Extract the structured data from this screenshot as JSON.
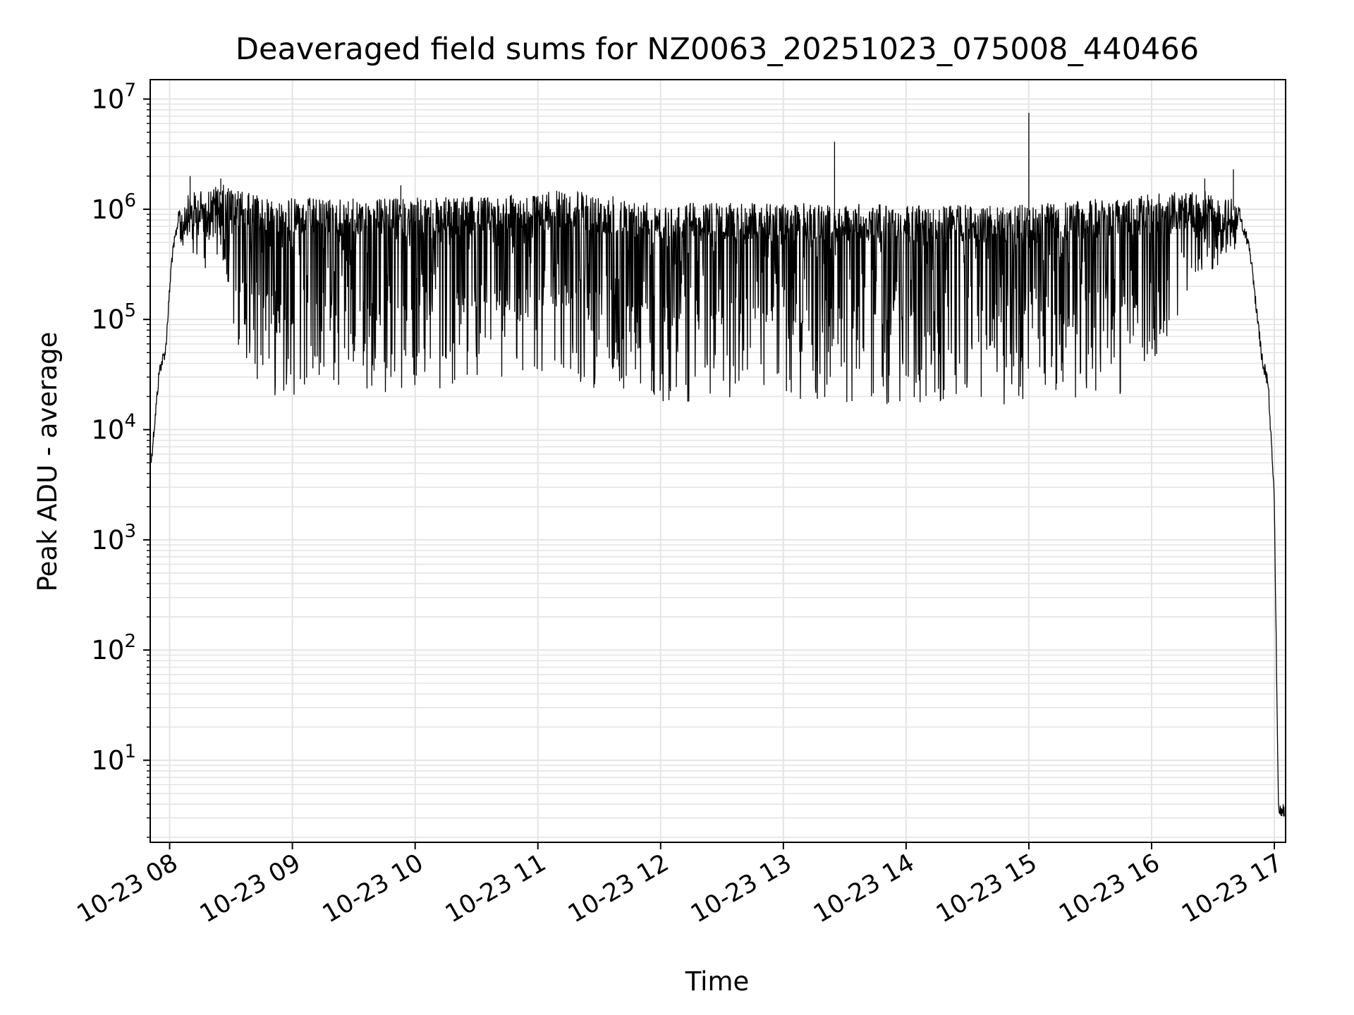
{
  "chart_data": {
    "type": "line",
    "title": "Deaveraged field sums for NZ0063_20251023_075008_440466",
    "xlabel": "Time",
    "ylabel": "Peak ADU - average",
    "y_scale": "log",
    "ylim": [
      1.8,
      15000000
    ],
    "xlim": [
      "2025-10-23 07:50:30",
      "2025-10-23 17:05:30"
    ],
    "grid": true,
    "x_tick_labels": [
      "10-23 08",
      "10-23 09",
      "10-23 10",
      "10-23 11",
      "10-23 12",
      "10-23 13",
      "10-23 14",
      "10-23 15",
      "10-23 16",
      "10-23 17"
    ],
    "x_tick_values": [
      "2025-10-23 08:00",
      "2025-10-23 09:00",
      "2025-10-23 10:00",
      "2025-10-23 11:00",
      "2025-10-23 12:00",
      "2025-10-23 13:00",
      "2025-10-23 14:00",
      "2025-10-23 15:00",
      "2025-10-23 16:00",
      "2025-10-23 17:00"
    ],
    "y_ticks": [
      {
        "value": 10,
        "base": "10",
        "exp": "1"
      },
      {
        "value": 100,
        "base": "10",
        "exp": "2"
      },
      {
        "value": 1000,
        "base": "10",
        "exp": "3"
      },
      {
        "value": 10000,
        "base": "10",
        "exp": "4"
      },
      {
        "value": 100000,
        "base": "10",
        "exp": "5"
      },
      {
        "value": 1000000,
        "base": "10",
        "exp": "6"
      },
      {
        "value": 10000000,
        "base": "10",
        "exp": "7"
      }
    ],
    "series": [
      {
        "color": "#000000",
        "envelope_upper": [
          {
            "t": "2025-10-23 07:51",
            "v": 6000
          },
          {
            "t": "2025-10-23 07:55",
            "v": 40000
          },
          {
            "t": "2025-10-23 07:58",
            "v": 60000
          },
          {
            "t": "2025-10-23 08:01",
            "v": 400000
          },
          {
            "t": "2025-10-23 08:05",
            "v": 1150000
          },
          {
            "t": "2025-10-23 08:10",
            "v": 1400000
          },
          {
            "t": "2025-10-23 08:25",
            "v": 1700000
          },
          {
            "t": "2025-10-23 08:45",
            "v": 1300000
          },
          {
            "t": "2025-10-23 09:30",
            "v": 1250000
          },
          {
            "t": "2025-10-23 10:30",
            "v": 1300000
          },
          {
            "t": "2025-10-23 11:15",
            "v": 1500000
          },
          {
            "t": "2025-10-23 12:00",
            "v": 1150000
          },
          {
            "t": "2025-10-23 13:00",
            "v": 1150000
          },
          {
            "t": "2025-10-23 14:00",
            "v": 1100000
          },
          {
            "t": "2025-10-23 15:00",
            "v": 1100000
          },
          {
            "t": "2025-10-23 15:45",
            "v": 1300000
          },
          {
            "t": "2025-10-23 16:25",
            "v": 1500000
          },
          {
            "t": "2025-10-23 16:42",
            "v": 1200000
          },
          {
            "t": "2025-10-23 16:48",
            "v": 500000
          },
          {
            "t": "2025-10-23 16:54",
            "v": 50000
          },
          {
            "t": "2025-10-23 16:57",
            "v": 30000
          },
          {
            "t": "2025-10-23 17:00",
            "v": 2500
          },
          {
            "t": "2025-10-23 17:01",
            "v": 100
          },
          {
            "t": "2025-10-23 17:02",
            "v": 4
          },
          {
            "t": "2025-10-23 17:05",
            "v": 4
          }
        ],
        "envelope_lower": [
          {
            "t": "2025-10-23 08:05",
            "v": 350000
          },
          {
            "t": "2025-10-23 08:25",
            "v": 250000
          },
          {
            "t": "2025-10-23 08:35",
            "v": 40000
          },
          {
            "t": "2025-10-23 08:50",
            "v": 20000
          },
          {
            "t": "2025-10-23 10:00",
            "v": 22000
          },
          {
            "t": "2025-10-23 11:00",
            "v": 30000
          },
          {
            "t": "2025-10-23 12:00",
            "v": 18000
          },
          {
            "t": "2025-10-23 13:00",
            "v": 17000
          },
          {
            "t": "2025-10-23 14:00",
            "v": 16000
          },
          {
            "t": "2025-10-23 15:00",
            "v": 17000
          },
          {
            "t": "2025-10-23 15:45",
            "v": 20000
          },
          {
            "t": "2025-10-23 16:05",
            "v": 50000
          },
          {
            "t": "2025-10-23 16:20",
            "v": 200000
          },
          {
            "t": "2025-10-23 16:42",
            "v": 400000
          }
        ],
        "spikes": [
          {
            "t": "2025-10-23 08:10",
            "v": 2000000
          },
          {
            "t": "2025-10-23 08:25",
            "v": 1900000
          },
          {
            "t": "2025-10-23 09:53",
            "v": 1650000
          },
          {
            "t": "2025-10-23 13:25",
            "v": 4100000
          },
          {
            "t": "2025-10-23 15:00",
            "v": 7500000
          },
          {
            "t": "2025-10-23 16:26",
            "v": 1900000
          },
          {
            "t": "2025-10-23 16:40",
            "v": 2300000
          }
        ]
      }
    ]
  }
}
